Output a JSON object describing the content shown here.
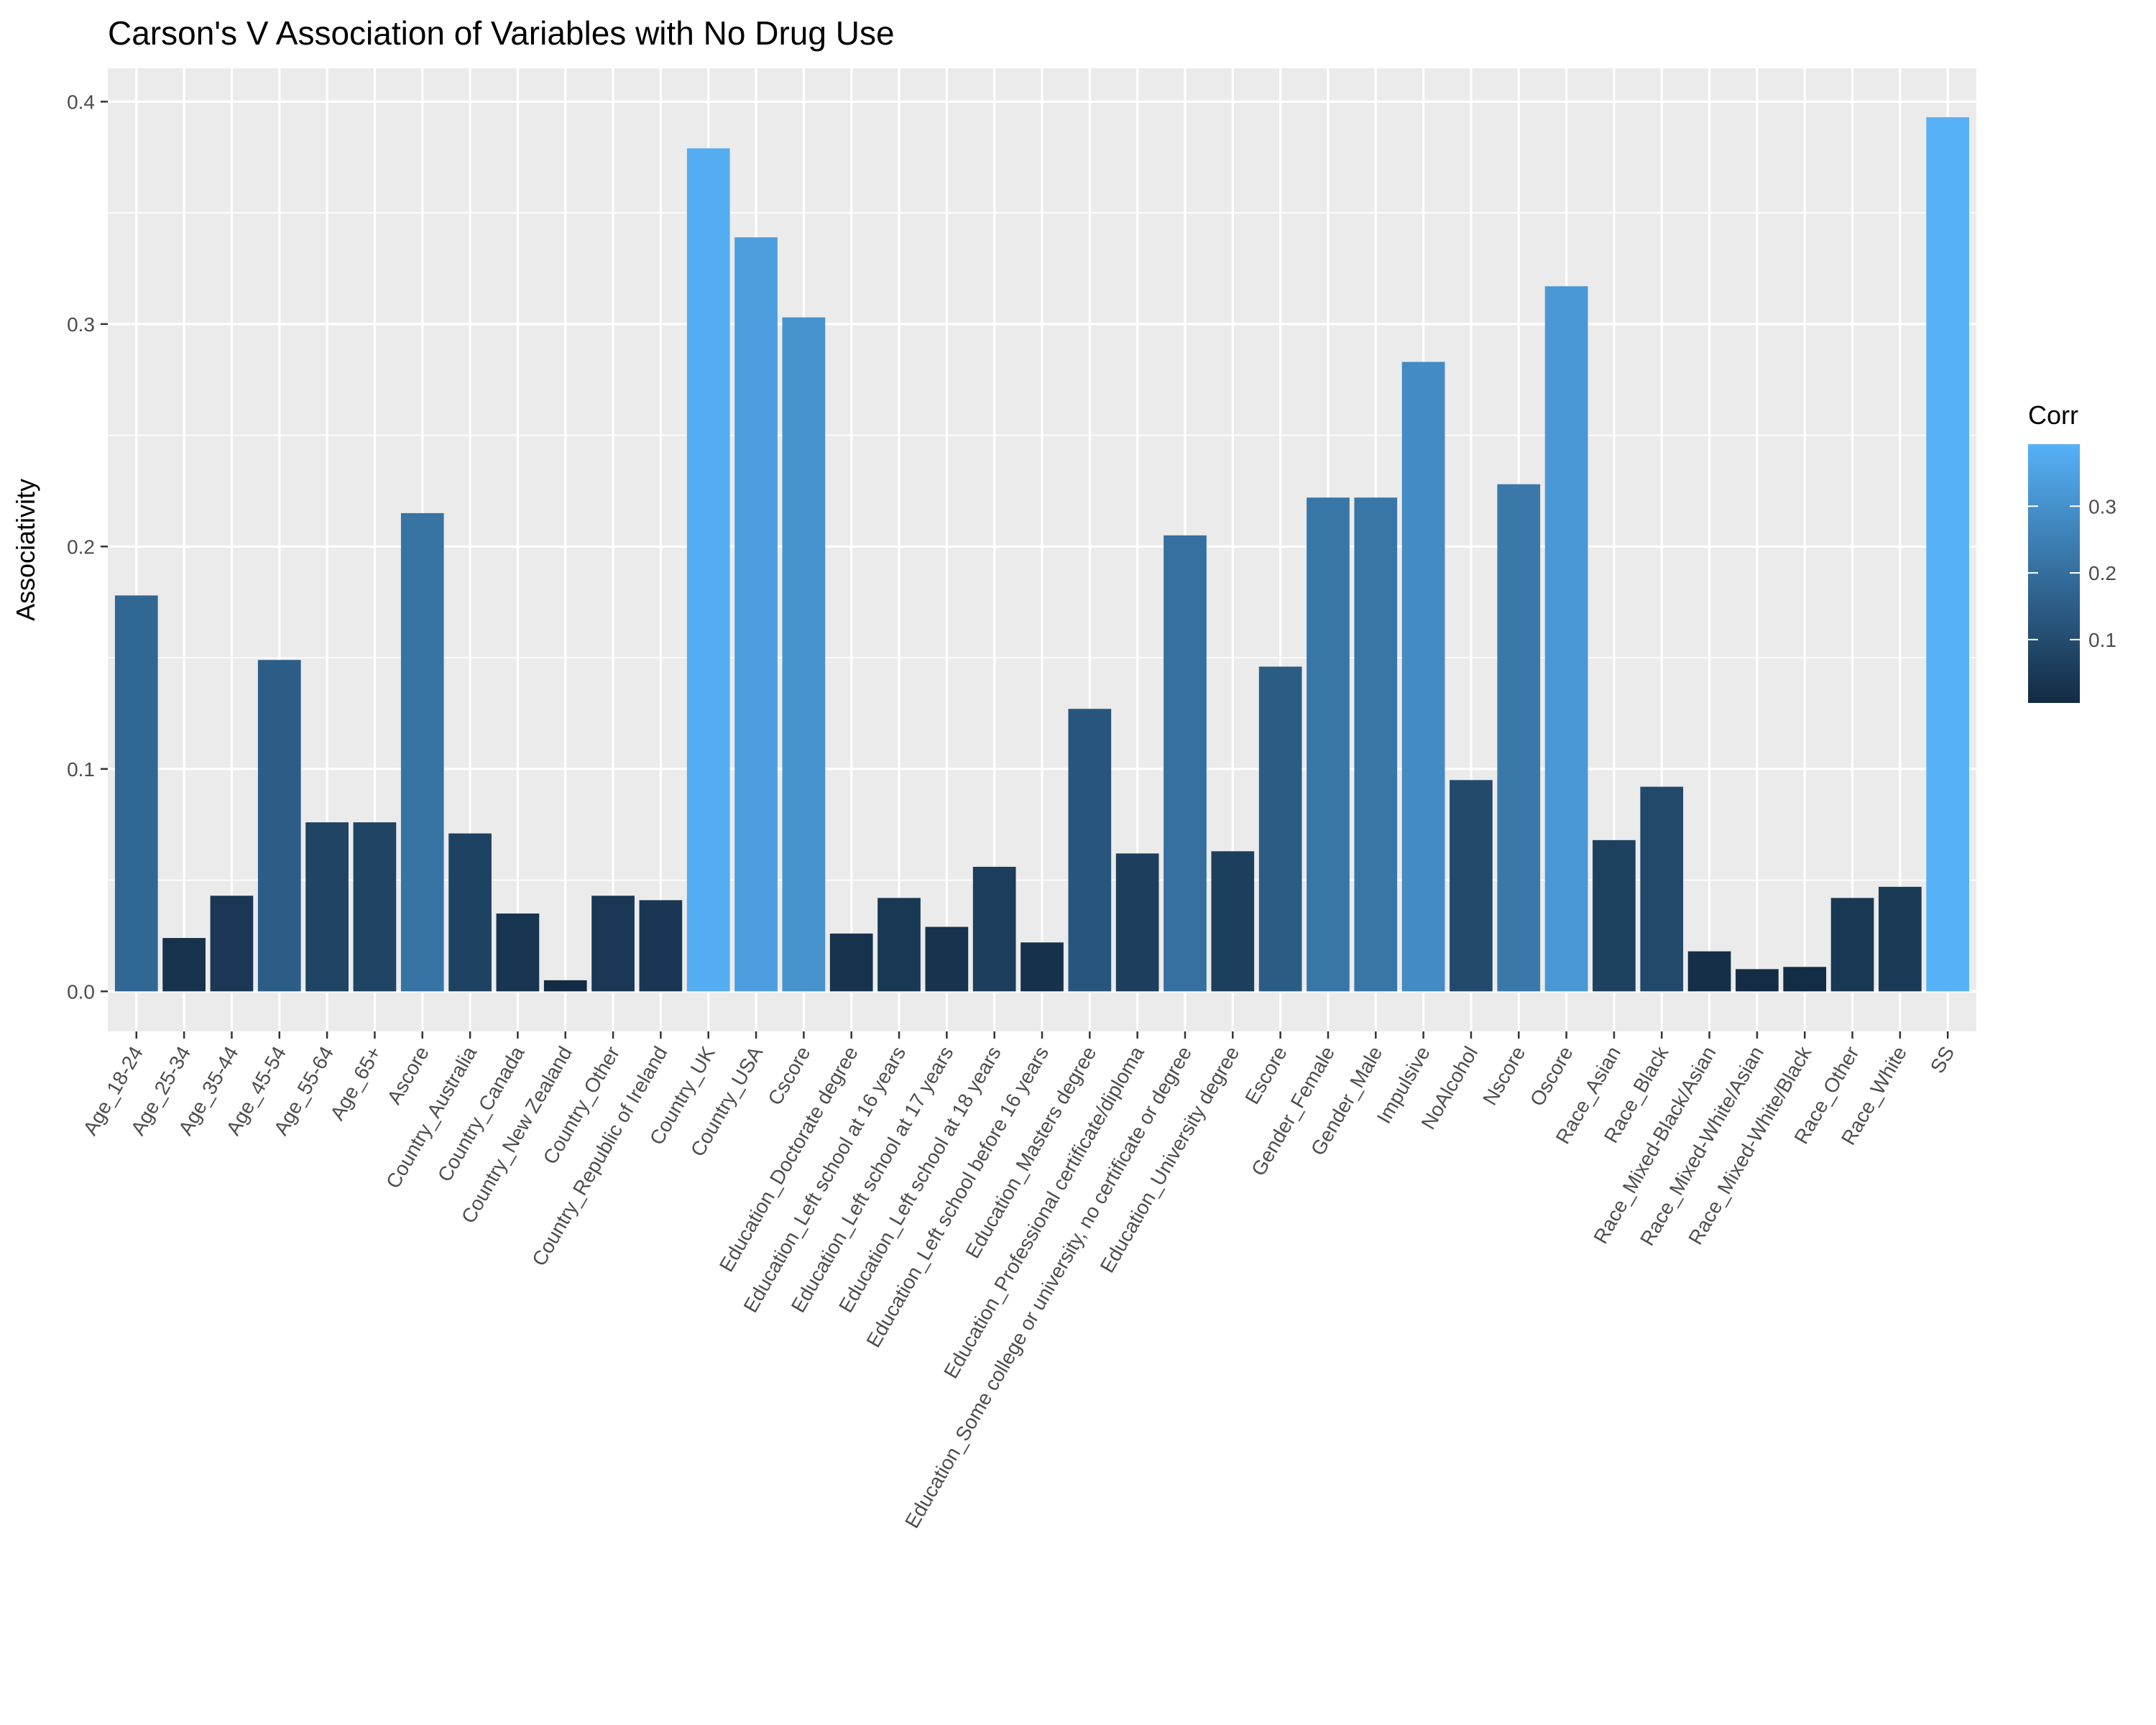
{
  "chart_data": {
    "type": "bar",
    "title": "Carson's V Association of Variables with No Drug Use",
    "xlabel": "",
    "ylabel": "Associativity",
    "ylim": [
      -0.018,
      0.415
    ],
    "yticks": [
      0.0,
      0.1,
      0.2,
      0.3,
      0.4
    ],
    "ytick_labels": [
      "0.0",
      "0.1",
      "0.2",
      "0.3",
      "0.4"
    ],
    "grid": true,
    "legend": {
      "title": "Corr",
      "placement": "right",
      "ticks": [
        0.1,
        0.2,
        0.3
      ],
      "tick_labels": [
        "0.1",
        "0.2",
        "0.3"
      ],
      "color_low": "#132b43",
      "color_high": "#56b1f7",
      "range": [
        0.005,
        0.393
      ]
    },
    "categories": [
      "Age_18-24",
      "Age_25-34",
      "Age_35-44",
      "Age_45-54",
      "Age_55-64",
      "Age_65+",
      "Ascore",
      "Country_Australia",
      "Country_Canada",
      "Country_New Zealand",
      "Country_Other",
      "Country_Republic of Ireland",
      "Country_UK",
      "Country_USA",
      "Cscore",
      "Education_Doctorate degree",
      "Education_Left school at 16 years",
      "Education_Left school at 17 years",
      "Education_Left school at 18 years",
      "Education_Left school before 16 years",
      "Education_Masters degree",
      "Education_Professional certificate/diploma",
      "Education_Some college or university, no certificate or degree",
      "Education_University degree",
      "Escore",
      "Gender_Female",
      "Gender_Male",
      "Impulsive",
      "NoAlcohol",
      "Nscore",
      "Oscore",
      "Race_Asian",
      "Race_Black",
      "Race_Mixed-Black/Asian",
      "Race_Mixed-White/Asian",
      "Race_Mixed-White/Black",
      "Race_Other",
      "Race_White",
      "SS"
    ],
    "values": [
      0.178,
      0.024,
      0.043,
      0.149,
      0.076,
      0.076,
      0.215,
      0.071,
      0.035,
      0.005,
      0.043,
      0.041,
      0.379,
      0.339,
      0.303,
      0.026,
      0.042,
      0.029,
      0.056,
      0.022,
      0.127,
      0.062,
      0.205,
      0.063,
      0.146,
      0.222,
      0.222,
      0.283,
      0.095,
      0.228,
      0.317,
      0.068,
      0.092,
      0.018,
      0.01,
      0.011,
      0.042,
      0.047,
      0.393
    ],
    "colors": {
      "panel_background": "#ebebeb",
      "gridline": "#ffffff",
      "tick_color": "#333333"
    }
  }
}
